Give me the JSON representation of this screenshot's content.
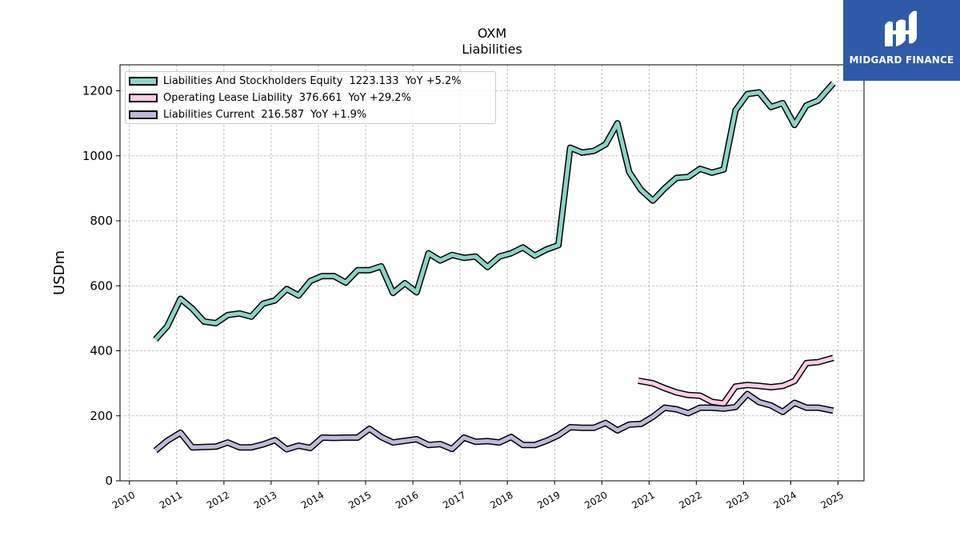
{
  "chart_data": {
    "type": "line",
    "title": "OXM",
    "subtitle": "Liabilities",
    "ylabel": "USDm",
    "xlabel": "",
    "ylim": [
      0,
      1280
    ],
    "xlim": [
      2009.8,
      2025.55
    ],
    "yticks": [
      "0",
      "200",
      "400",
      "600",
      "800",
      "1000",
      "1200"
    ],
    "xticks": [
      "2010",
      "2011",
      "2012",
      "2013",
      "2014",
      "2015",
      "2016",
      "2017",
      "2018",
      "2019",
      "2020",
      "2021",
      "2022",
      "2023",
      "2024",
      "2025"
    ],
    "grid": true,
    "legend_position": "top-left",
    "series": [
      {
        "name": "Liabilities And Stockholders Equity",
        "legend_value": "1223.133",
        "legend_yoy": "YoY +5.2%",
        "color": "#8dd3c7",
        "points": [
          [
            2010.55,
            435
          ],
          [
            2010.8,
            475
          ],
          [
            2011.08,
            560
          ],
          [
            2011.33,
            530
          ],
          [
            2011.58,
            490
          ],
          [
            2011.83,
            485
          ],
          [
            2012.08,
            510
          ],
          [
            2012.33,
            515
          ],
          [
            2012.58,
            505
          ],
          [
            2012.83,
            545
          ],
          [
            2013.08,
            555
          ],
          [
            2013.33,
            590
          ],
          [
            2013.58,
            570
          ],
          [
            2013.83,
            615
          ],
          [
            2014.08,
            630
          ],
          [
            2014.33,
            630
          ],
          [
            2014.58,
            610
          ],
          [
            2014.83,
            648
          ],
          [
            2015.08,
            648
          ],
          [
            2015.33,
            660
          ],
          [
            2015.58,
            578
          ],
          [
            2015.83,
            608
          ],
          [
            2016.08,
            580
          ],
          [
            2016.33,
            700
          ],
          [
            2016.58,
            678
          ],
          [
            2016.83,
            695
          ],
          [
            2017.08,
            686
          ],
          [
            2017.33,
            690
          ],
          [
            2017.58,
            658
          ],
          [
            2017.83,
            690
          ],
          [
            2018.08,
            700
          ],
          [
            2018.33,
            718
          ],
          [
            2018.58,
            693
          ],
          [
            2018.83,
            712
          ],
          [
            2019.08,
            725
          ],
          [
            2019.33,
            1025
          ],
          [
            2019.58,
            1010
          ],
          [
            2019.83,
            1015
          ],
          [
            2020.08,
            1035
          ],
          [
            2020.33,
            1100
          ],
          [
            2020.58,
            950
          ],
          [
            2020.83,
            895
          ],
          [
            2021.08,
            862
          ],
          [
            2021.33,
            900
          ],
          [
            2021.58,
            932
          ],
          [
            2021.83,
            935
          ],
          [
            2022.08,
            960
          ],
          [
            2022.33,
            948
          ],
          [
            2022.58,
            958
          ],
          [
            2022.83,
            1140
          ],
          [
            2023.08,
            1190
          ],
          [
            2023.33,
            1195
          ],
          [
            2023.58,
            1150
          ],
          [
            2023.83,
            1162
          ],
          [
            2024.08,
            1095
          ],
          [
            2024.33,
            1155
          ],
          [
            2024.58,
            1170
          ],
          [
            2024.9,
            1223
          ]
        ]
      },
      {
        "name": "Operating Lease Liability",
        "legend_value": "376.661",
        "legend_yoy": "YoY +29.2%",
        "color": "#fccde5",
        "points": [
          [
            2020.77,
            308
          ],
          [
            2021.08,
            300
          ],
          [
            2021.33,
            285
          ],
          [
            2021.58,
            272
          ],
          [
            2021.83,
            264
          ],
          [
            2022.08,
            262
          ],
          [
            2022.33,
            243
          ],
          [
            2022.58,
            238
          ],
          [
            2022.83,
            290
          ],
          [
            2023.08,
            295
          ],
          [
            2023.33,
            292
          ],
          [
            2023.58,
            288
          ],
          [
            2023.83,
            292
          ],
          [
            2024.08,
            307
          ],
          [
            2024.33,
            362
          ],
          [
            2024.58,
            365
          ],
          [
            2024.9,
            378
          ]
        ]
      },
      {
        "name": "Liabilities Current",
        "legend_value": "216.587",
        "legend_yoy": "YoY +1.9%",
        "color": "#bebada",
        "points": [
          [
            2010.55,
            93
          ],
          [
            2010.8,
            123
          ],
          [
            2011.08,
            148
          ],
          [
            2011.33,
            103
          ],
          [
            2011.58,
            104
          ],
          [
            2011.83,
            105
          ],
          [
            2012.08,
            118
          ],
          [
            2012.33,
            103
          ],
          [
            2012.58,
            103
          ],
          [
            2012.83,
            112
          ],
          [
            2013.08,
            125
          ],
          [
            2013.33,
            97
          ],
          [
            2013.58,
            108
          ],
          [
            2013.83,
            101
          ],
          [
            2014.08,
            133
          ],
          [
            2014.33,
            132
          ],
          [
            2014.58,
            133
          ],
          [
            2014.83,
            133
          ],
          [
            2015.08,
            160
          ],
          [
            2015.33,
            135
          ],
          [
            2015.58,
            118
          ],
          [
            2015.83,
            123
          ],
          [
            2016.08,
            128
          ],
          [
            2016.33,
            110
          ],
          [
            2016.58,
            113
          ],
          [
            2016.83,
            98
          ],
          [
            2017.08,
            133
          ],
          [
            2017.33,
            120
          ],
          [
            2017.58,
            122
          ],
          [
            2017.83,
            118
          ],
          [
            2018.08,
            135
          ],
          [
            2018.33,
            110
          ],
          [
            2018.58,
            110
          ],
          [
            2018.83,
            123
          ],
          [
            2019.08,
            140
          ],
          [
            2019.33,
            165
          ],
          [
            2019.58,
            163
          ],
          [
            2019.83,
            163
          ],
          [
            2020.08,
            178
          ],
          [
            2020.33,
            155
          ],
          [
            2020.58,
            173
          ],
          [
            2020.83,
            175
          ],
          [
            2021.08,
            197
          ],
          [
            2021.33,
            225
          ],
          [
            2021.58,
            220
          ],
          [
            2021.83,
            208
          ],
          [
            2022.08,
            225
          ],
          [
            2022.33,
            225
          ],
          [
            2022.58,
            222
          ],
          [
            2022.83,
            227
          ],
          [
            2023.08,
            267
          ],
          [
            2023.33,
            242
          ],
          [
            2023.58,
            232
          ],
          [
            2023.83,
            212
          ],
          [
            2024.08,
            240
          ],
          [
            2024.33,
            225
          ],
          [
            2024.58,
            225
          ],
          [
            2024.9,
            216
          ]
        ]
      }
    ]
  },
  "logo": {
    "name": "MIDGARD FINANCE",
    "color": "#2f5aa8"
  }
}
